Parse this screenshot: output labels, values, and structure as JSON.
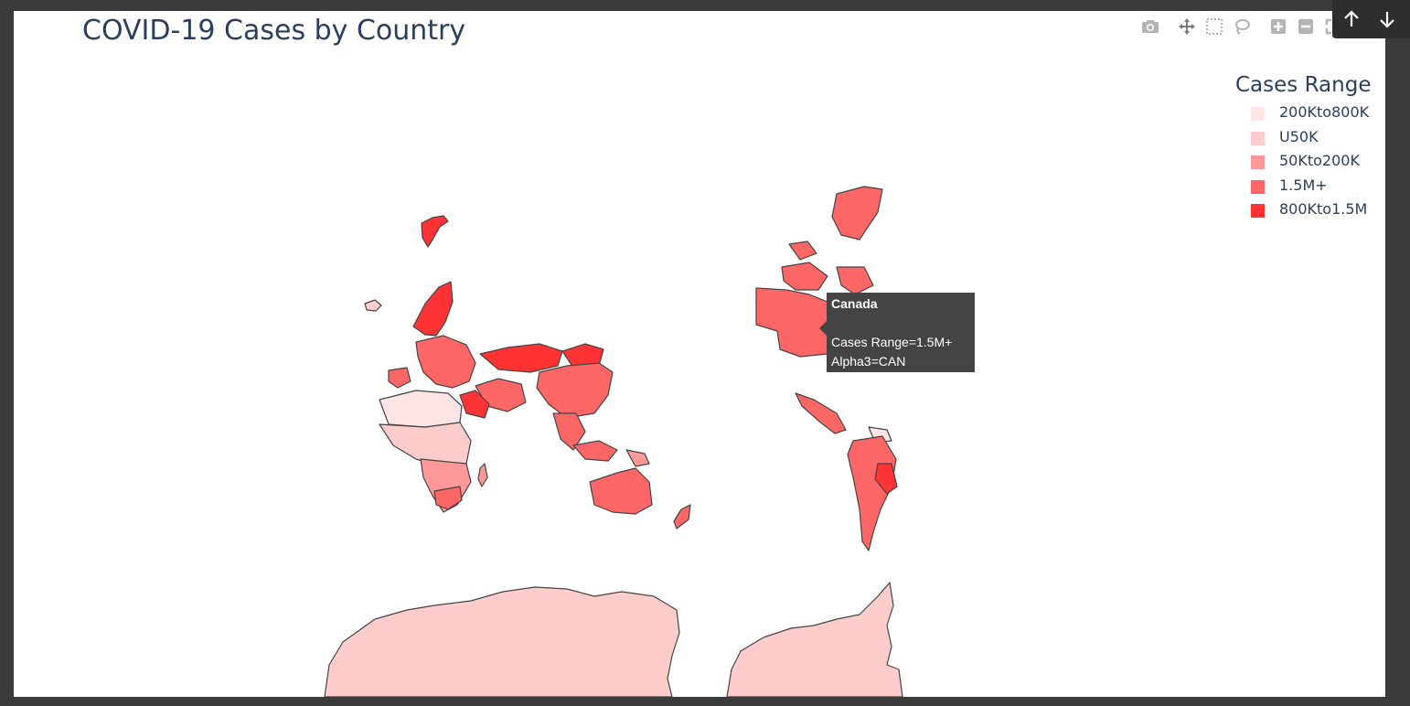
{
  "title": "COVID-19 Cases by Country",
  "modebar": {
    "icons": [
      "camera-icon",
      "pan-icon",
      "box-select-icon",
      "lasso-select-icon",
      "zoom-in-icon",
      "zoom-out-icon",
      "reset-view-icon"
    ]
  },
  "legend": {
    "title": "Cases Range",
    "items": [
      {
        "label": "200Kto800K",
        "color": "#ffe5e5"
      },
      {
        "label": "U50K",
        "color": "#ffcccc"
      },
      {
        "label": "50Kto200K",
        "color": "#ff9999"
      },
      {
        "label": "1.5M+",
        "color": "#ff6666"
      },
      {
        "label": "800Kto1.5M",
        "color": "#ff3333"
      }
    ]
  },
  "tooltip": {
    "country": "Canada",
    "range_line": "Cases Range=1.5M+",
    "alpha_line": "Alpha3=CAN"
  },
  "nav": {
    "up_icon": "arrow-up-icon",
    "down_icon": "arrow-down-icon"
  },
  "colors": {
    "text": "#2a3f5f",
    "border": "#444444",
    "background": "#ffffff",
    "frame": "#3b3b3b"
  }
}
